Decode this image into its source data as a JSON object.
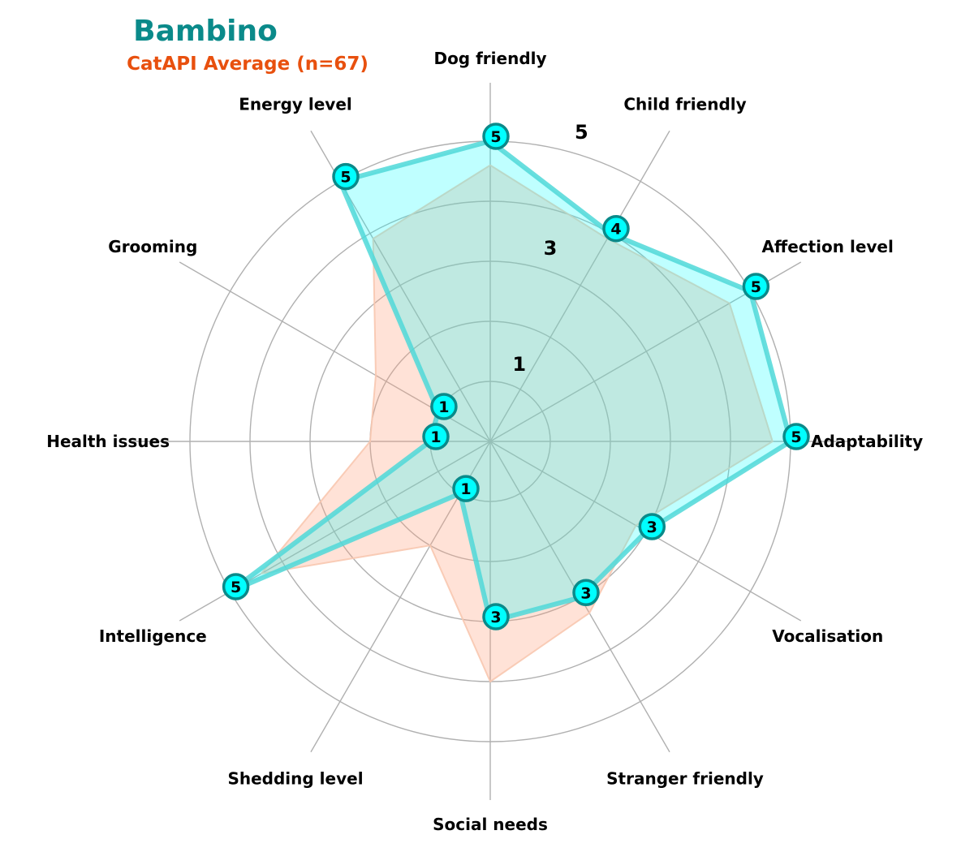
{
  "chart_data": {
    "type": "radar",
    "title": "Bambino",
    "subtitle": "CatAPI Average (n=67)",
    "axes": [
      "Dog friendly",
      "Child friendly",
      "Affection level",
      "Adaptability",
      "Vocalisation",
      "Stranger friendly",
      "Social needs",
      "Shedding level",
      "Intelligence",
      "Health issues",
      "Grooming",
      "Energy level"
    ],
    "rlim": [
      0,
      5
    ],
    "rticks": [
      1,
      3,
      5
    ],
    "grid": true,
    "series": [
      {
        "name": "Bambino",
        "values": [
          5,
          4,
          5,
          5,
          3,
          3,
          3,
          1,
          5,
          1,
          1,
          5
        ],
        "fill": "#00ffff",
        "line": "#4fd8d8",
        "marker": "#00ffff",
        "marker_edge": "#0a8a8a",
        "show_labels": true
      },
      {
        "values": [
          4.6,
          3.9,
          4.6,
          4.7,
          2.8,
          3.3,
          4.0,
          2.0,
          4.4,
          2.0,
          2.2,
          3.9
        ],
        "fill": "#ffa07a",
        "line": "#f8c8b0",
        "show_labels": false
      }
    ],
    "colors": {
      "title": "#0a8a8a",
      "subtitle": "#e8500e",
      "grid": "#b0b0b0"
    }
  }
}
